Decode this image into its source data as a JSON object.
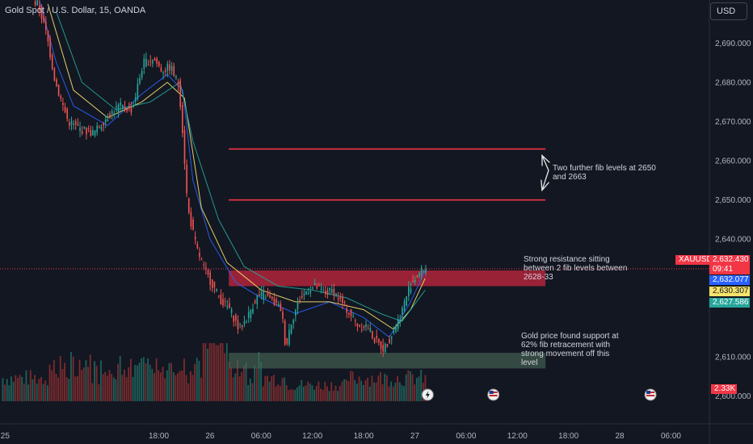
{
  "header": {
    "title": "Gold Spot / U.S. Dollar, 15, OANDA",
    "currency_button": "USD"
  },
  "colors": {
    "background": "#131722",
    "up": "#26a69a",
    "down": "#ef5350",
    "fib_line": "#f23645",
    "resistance_zone": "#b2253b",
    "support_zone": "#4a6b58",
    "ma_blue": "#2962ff",
    "ma_yellow": "#f7e36b",
    "ma_green": "#26a69a"
  },
  "annotations": {
    "fib_note": [
      "Two further fib levels at 2650",
      "and 2663"
    ],
    "resistance_note": [
      "Strong resistance sitting",
      "between 2 fib levels between",
      "2628-33"
    ],
    "support_note": [
      "Gold price found support at",
      "62% fib retracement with",
      "strong movement off this",
      "level"
    ]
  },
  "price_tags": {
    "symbol": "XAUUSD",
    "last_price": "2,632.430",
    "countdown": "09:41",
    "ma_blue": "2,632.077",
    "ma_yellow": "2,630.307",
    "ma_green": "2,627.586",
    "volume": "2.33K"
  },
  "chart_data": {
    "type": "candlestick",
    "symbol": "XAUUSD",
    "timeframe": "15",
    "y_ticks": [
      "2,690.000",
      "2,680.000",
      "2,670.000",
      "2,660.000",
      "2,650.000",
      "2,640.000",
      "2,610.000",
      "2,600.000"
    ],
    "y_tick_values": [
      2690,
      2680,
      2670,
      2660,
      2650,
      2640,
      2610,
      2600
    ],
    "ylim": [
      2597,
      2701
    ],
    "x_ticks": [
      "25",
      "18:00",
      "26",
      "06:00",
      "12:00",
      "18:00",
      "27",
      "06:00",
      "12:00",
      "18:00",
      "28",
      "06:00"
    ],
    "x_tick_hours": [
      0,
      18,
      24,
      30,
      36,
      42,
      48,
      54,
      60,
      66,
      72,
      78
    ],
    "x_range_hours": [
      -0.6,
      82.5
    ],
    "horizontal_levels": [
      2663,
      2650
    ],
    "zones": [
      {
        "name": "resistance",
        "low": 2628,
        "high": 2632,
        "start_hour": 26.2,
        "end_hour": 63.3
      },
      {
        "name": "support",
        "low": 2607,
        "high": 2611,
        "start_hour": 26.2,
        "end_hour": 63.3
      }
    ],
    "last_price": 2632.43,
    "price_path": [
      [
        4.0,
        2700
      ],
      [
        5.0,
        2692
      ],
      [
        6.0,
        2680
      ],
      [
        7.5,
        2670
      ],
      [
        9.0,
        2668
      ],
      [
        10.5,
        2667
      ],
      [
        12.0,
        2671
      ],
      [
        13.5,
        2674
      ],
      [
        15.0,
        2673
      ],
      [
        16.3,
        2685
      ],
      [
        17.5,
        2686
      ],
      [
        18.5,
        2683
      ],
      [
        19.5,
        2684
      ],
      [
        20.5,
        2679
      ],
      [
        21.0,
        2665
      ],
      [
        21.5,
        2648
      ],
      [
        22.5,
        2638
      ],
      [
        23.5,
        2632
      ],
      [
        24.5,
        2628
      ],
      [
        25.5,
        2624
      ],
      [
        26.5,
        2622
      ],
      [
        27.5,
        2617
      ],
      [
        28.5,
        2620
      ],
      [
        29.5,
        2625
      ],
      [
        30.5,
        2626
      ],
      [
        31.5,
        2624
      ],
      [
        32.5,
        2622
      ],
      [
        33.0,
        2612
      ],
      [
        33.5,
        2618
      ],
      [
        34.5,
        2624
      ],
      [
        35.5,
        2627
      ],
      [
        36.5,
        2628
      ],
      [
        37.5,
        2626
      ],
      [
        38.5,
        2627
      ],
      [
        39.5,
        2624
      ],
      [
        40.5,
        2621
      ],
      [
        41.5,
        2618
      ],
      [
        42.5,
        2618
      ],
      [
        43.5,
        2614
      ],
      [
        44.5,
        2612
      ],
      [
        45.5,
        2616
      ],
      [
        46.5,
        2621
      ],
      [
        47.5,
        2628
      ],
      [
        48.5,
        2631
      ],
      [
        49.2,
        2632.43
      ]
    ],
    "ma_blue_path": [
      [
        4,
        2701
      ],
      [
        6,
        2685
      ],
      [
        8,
        2674
      ],
      [
        12,
        2669
      ],
      [
        16,
        2677
      ],
      [
        19,
        2682
      ],
      [
        20.8,
        2678
      ],
      [
        22,
        2655
      ],
      [
        24,
        2640
      ],
      [
        27,
        2629
      ],
      [
        30,
        2625
      ],
      [
        34,
        2621
      ],
      [
        38,
        2624
      ],
      [
        42,
        2620
      ],
      [
        45,
        2615
      ],
      [
        47.5,
        2624
      ],
      [
        49.2,
        2632
      ]
    ],
    "ma_yellow_path": [
      [
        5,
        2700
      ],
      [
        8,
        2678
      ],
      [
        12,
        2671
      ],
      [
        16,
        2675
      ],
      [
        19,
        2680
      ],
      [
        21,
        2676
      ],
      [
        23,
        2648
      ],
      [
        26,
        2634
      ],
      [
        30,
        2627
      ],
      [
        34,
        2624
      ],
      [
        38,
        2624
      ],
      [
        42,
        2622
      ],
      [
        45.5,
        2617
      ],
      [
        47.5,
        2622
      ],
      [
        49.2,
        2630
      ]
    ],
    "ma_green_path": [
      [
        6,
        2698
      ],
      [
        9,
        2680
      ],
      [
        13,
        2673
      ],
      [
        17,
        2675
      ],
      [
        20.5,
        2680
      ],
      [
        22,
        2665
      ],
      [
        25,
        2645
      ],
      [
        28,
        2633
      ],
      [
        32,
        2628
      ],
      [
        36,
        2627
      ],
      [
        40,
        2625
      ],
      [
        44,
        2621
      ],
      [
        46.5,
        2619
      ],
      [
        49.2,
        2627
      ]
    ]
  }
}
